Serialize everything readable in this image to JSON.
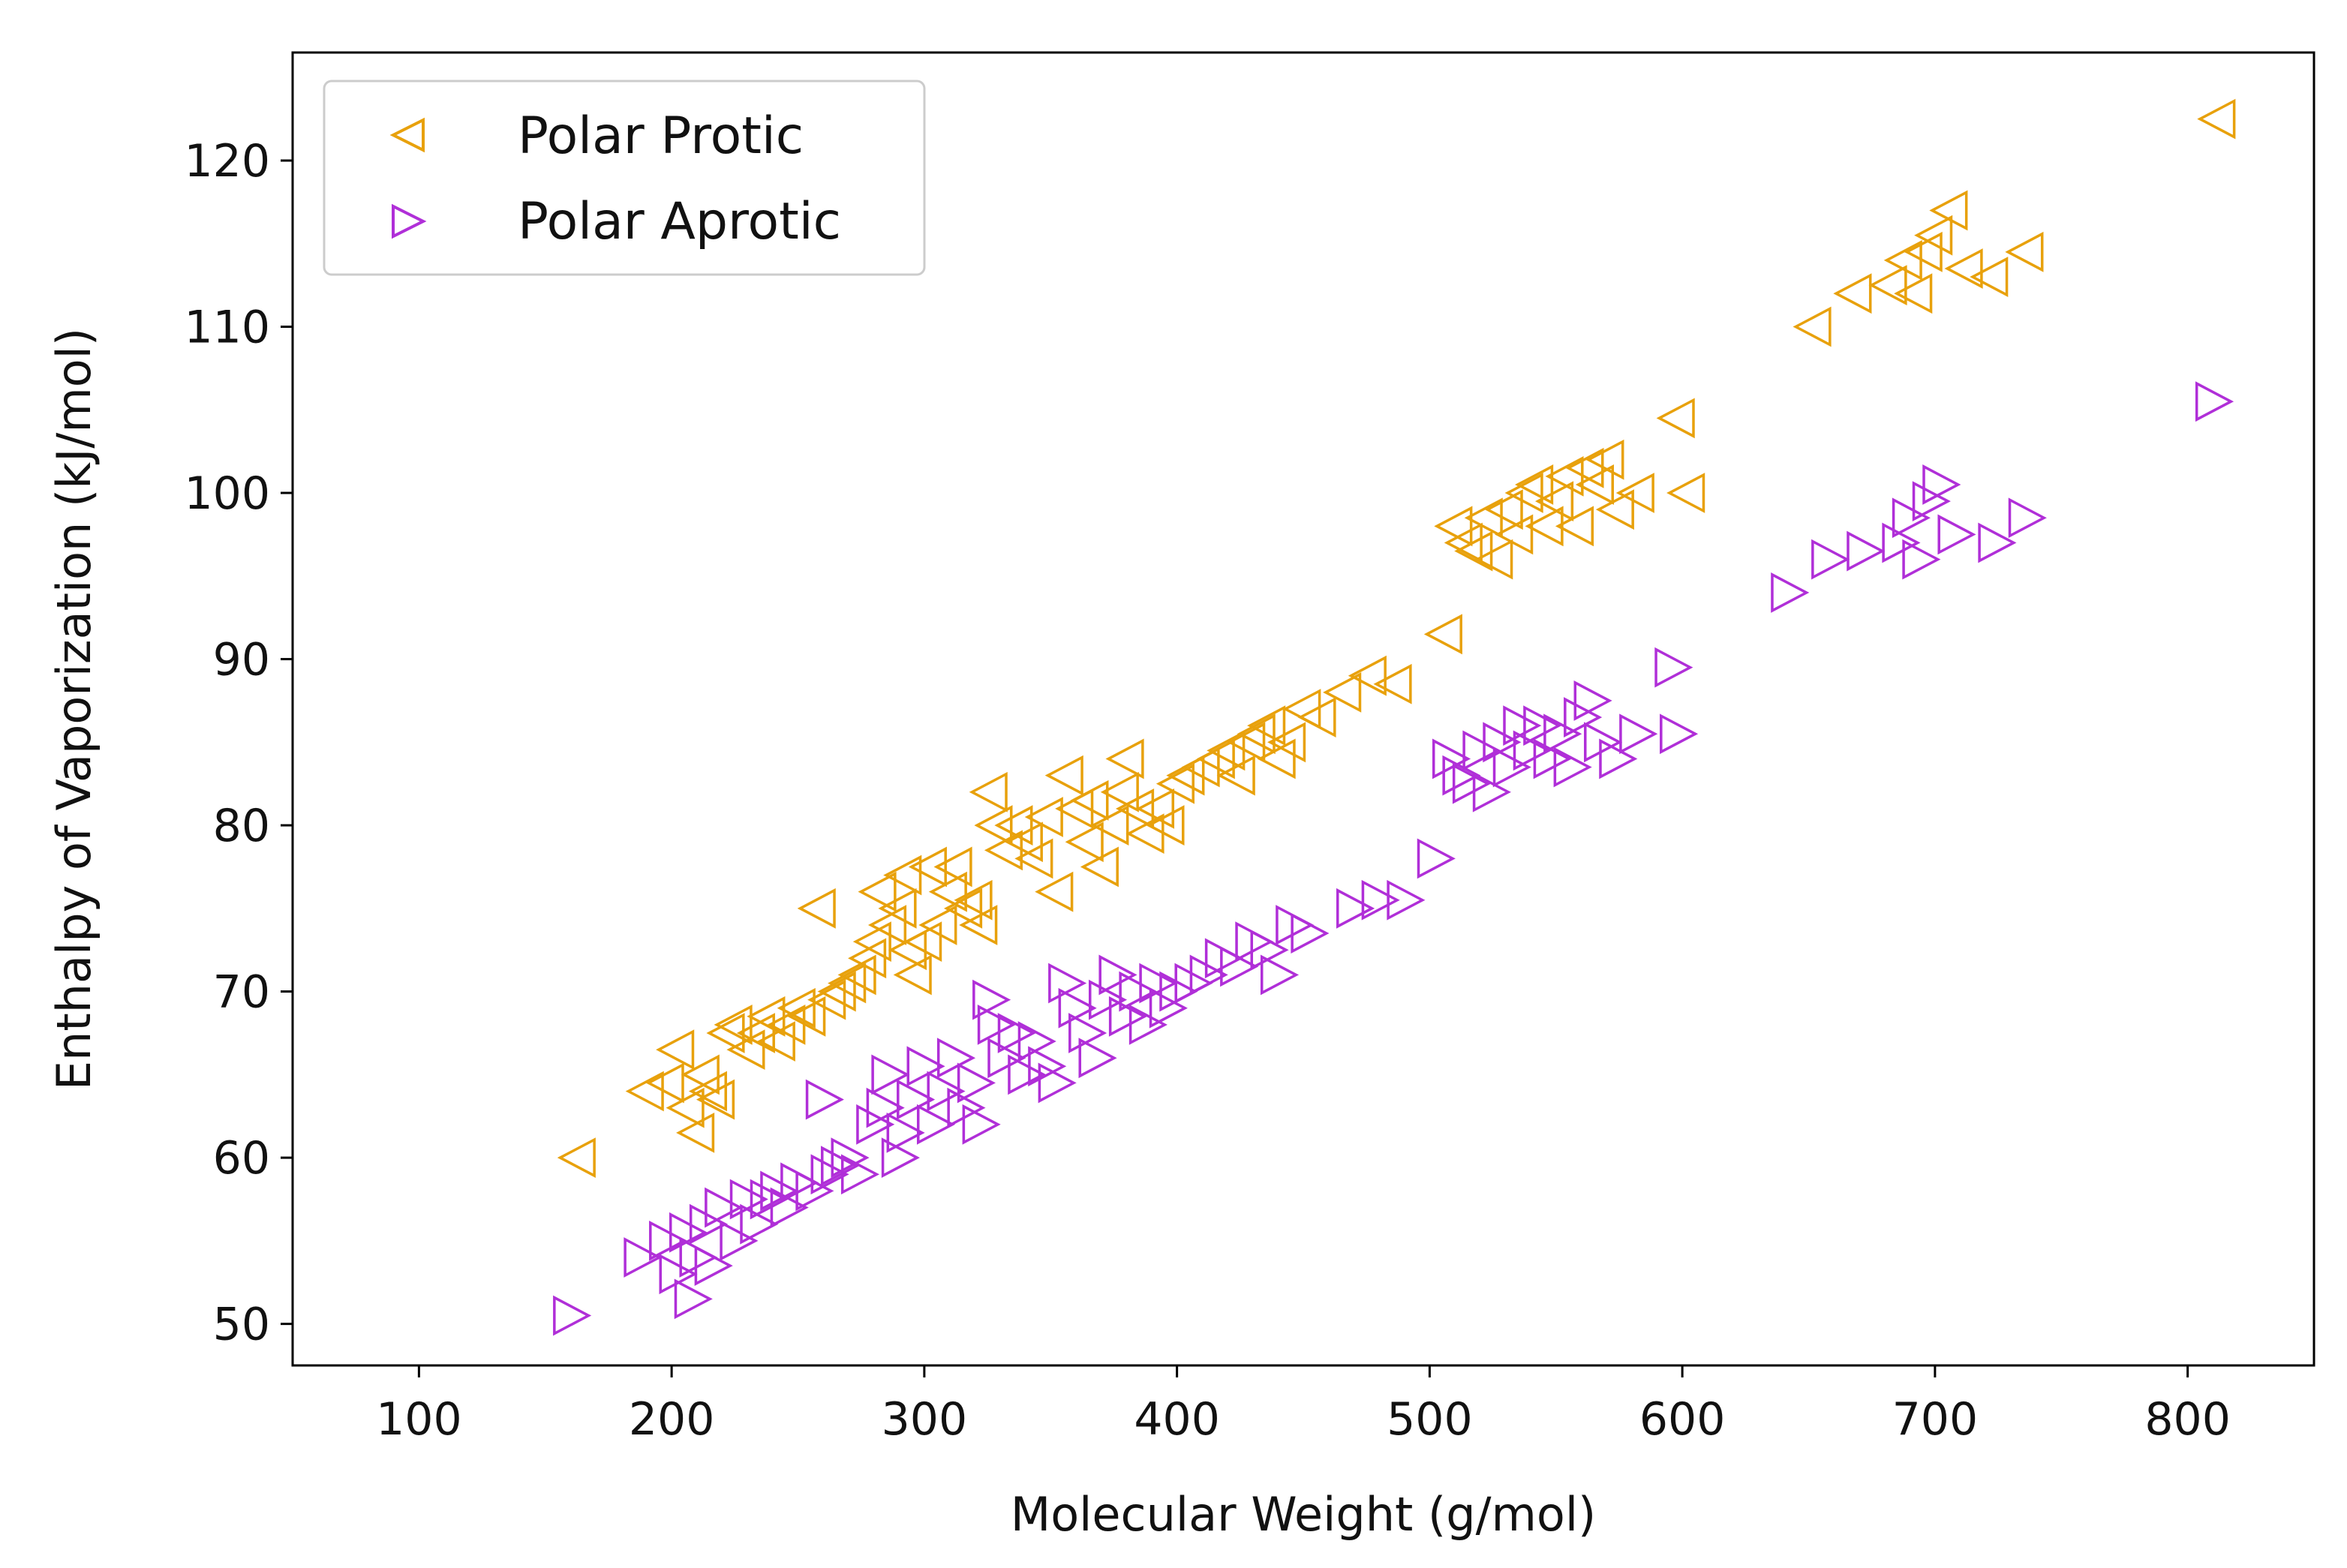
{
  "chart_data": {
    "type": "scatter",
    "xlabel": "Molecular Weight (g/mol)",
    "ylabel": "Enthalpy of Vaporization (kJ/mol)",
    "xlim": [
      50,
      850
    ],
    "ylim": [
      47.5,
      126.5
    ],
    "xticks": [
      100,
      200,
      300,
      400,
      500,
      600,
      700,
      800
    ],
    "yticks": [
      50,
      60,
      70,
      80,
      90,
      100,
      110,
      120
    ],
    "grid": false,
    "legend_position": "top-left",
    "series": [
      {
        "name": "Polar Protic",
        "marker": "triangle-left",
        "color": "#E8A10C",
        "points": [
          [
            163,
            60
          ],
          [
            190,
            64
          ],
          [
            198,
            64.5
          ],
          [
            202,
            66.5
          ],
          [
            206,
            63
          ],
          [
            210,
            61.5
          ],
          [
            212,
            65
          ],
          [
            215,
            64
          ],
          [
            218,
            63.5
          ],
          [
            222,
            67.5
          ],
          [
            225,
            68
          ],
          [
            230,
            66.5
          ],
          [
            234,
            67.5
          ],
          [
            238,
            68.5
          ],
          [
            242,
            67
          ],
          [
            246,
            68
          ],
          [
            250,
            69
          ],
          [
            254,
            68.5
          ],
          [
            258,
            75
          ],
          [
            262,
            69.5
          ],
          [
            266,
            70
          ],
          [
            270,
            70.5
          ],
          [
            274,
            71
          ],
          [
            278,
            72
          ],
          [
            280,
            73
          ],
          [
            282,
            76
          ],
          [
            286,
            74
          ],
          [
            290,
            75
          ],
          [
            292,
            77
          ],
          [
            294,
            72.5
          ],
          [
            296,
            71
          ],
          [
            300,
            73
          ],
          [
            302,
            77.5
          ],
          [
            306,
            74
          ],
          [
            310,
            76
          ],
          [
            312,
            77.5
          ],
          [
            316,
            75
          ],
          [
            320,
            75.5
          ],
          [
            322,
            74
          ],
          [
            326,
            82
          ],
          [
            328,
            80
          ],
          [
            332,
            78.5
          ],
          [
            336,
            80
          ],
          [
            340,
            79
          ],
          [
            344,
            78
          ],
          [
            348,
            80.5
          ],
          [
            352,
            76
          ],
          [
            356,
            83
          ],
          [
            360,
            81
          ],
          [
            364,
            79
          ],
          [
            366,
            81.5
          ],
          [
            370,
            77.5
          ],
          [
            374,
            80
          ],
          [
            378,
            82
          ],
          [
            380,
            84
          ],
          [
            384,
            81
          ],
          [
            388,
            79.5
          ],
          [
            392,
            81
          ],
          [
            396,
            80
          ],
          [
            400,
            82.5
          ],
          [
            404,
            83
          ],
          [
            410,
            83.5
          ],
          [
            416,
            84
          ],
          [
            420,
            84.5
          ],
          [
            424,
            83
          ],
          [
            428,
            85
          ],
          [
            432,
            85.5
          ],
          [
            436,
            86
          ],
          [
            440,
            84
          ],
          [
            444,
            85
          ],
          [
            450,
            87
          ],
          [
            456,
            86.5
          ],
          [
            466,
            88
          ],
          [
            476,
            89
          ],
          [
            486,
            88.5
          ],
          [
            506,
            91.5
          ],
          [
            510,
            98
          ],
          [
            514,
            97
          ],
          [
            518,
            96.5
          ],
          [
            522,
            98.5
          ],
          [
            526,
            96
          ],
          [
            530,
            99
          ],
          [
            534,
            97.5
          ],
          [
            538,
            100
          ],
          [
            542,
            100.5
          ],
          [
            546,
            98
          ],
          [
            550,
            99.5
          ],
          [
            554,
            101
          ],
          [
            558,
            98
          ],
          [
            562,
            101.5
          ],
          [
            566,
            100.5
          ],
          [
            570,
            102
          ],
          [
            574,
            99
          ],
          [
            582,
            100
          ],
          [
            598,
            104.5
          ],
          [
            602,
            100
          ],
          [
            652,
            110
          ],
          [
            668,
            112
          ],
          [
            682,
            112.5
          ],
          [
            688,
            114
          ],
          [
            692,
            112
          ],
          [
            696,
            114.5
          ],
          [
            700,
            115.5
          ],
          [
            706,
            117
          ],
          [
            712,
            113.5
          ],
          [
            722,
            113
          ],
          [
            736,
            114.5
          ],
          [
            812,
            122.5
          ]
        ]
      },
      {
        "name": "Polar Aprotic",
        "marker": "triangle-right",
        "color": "#B02FD8",
        "points": [
          [
            160,
            50.5
          ],
          [
            188,
            54
          ],
          [
            198,
            55
          ],
          [
            202,
            53
          ],
          [
            206,
            55.5
          ],
          [
            208,
            51.5
          ],
          [
            210,
            54
          ],
          [
            214,
            56
          ],
          [
            216,
            53.5
          ],
          [
            220,
            57
          ],
          [
            226,
            55
          ],
          [
            230,
            57.5
          ],
          [
            234,
            56
          ],
          [
            238,
            57.5
          ],
          [
            242,
            58
          ],
          [
            246,
            57
          ],
          [
            250,
            58.5
          ],
          [
            256,
            58
          ],
          [
            260,
            63.5
          ],
          [
            262,
            59
          ],
          [
            266,
            59.5
          ],
          [
            270,
            60
          ],
          [
            274,
            59
          ],
          [
            280,
            62
          ],
          [
            284,
            63
          ],
          [
            286,
            65
          ],
          [
            290,
            60
          ],
          [
            292,
            61.5
          ],
          [
            296,
            63.5
          ],
          [
            300,
            65.5
          ],
          [
            304,
            62
          ],
          [
            308,
            64
          ],
          [
            312,
            66
          ],
          [
            316,
            63
          ],
          [
            320,
            64.5
          ],
          [
            322,
            62
          ],
          [
            326,
            69.5
          ],
          [
            328,
            68
          ],
          [
            332,
            66
          ],
          [
            336,
            67.5
          ],
          [
            340,
            65
          ],
          [
            344,
            67
          ],
          [
            348,
            65.5
          ],
          [
            352,
            64.5
          ],
          [
            356,
            70.5
          ],
          [
            360,
            69
          ],
          [
            364,
            67.5
          ],
          [
            368,
            66
          ],
          [
            372,
            69.5
          ],
          [
            376,
            71
          ],
          [
            380,
            68.5
          ],
          [
            384,
            70
          ],
          [
            388,
            68
          ],
          [
            392,
            70.5
          ],
          [
            396,
            69
          ],
          [
            400,
            70
          ],
          [
            406,
            70.5
          ],
          [
            412,
            71
          ],
          [
            418,
            72
          ],
          [
            424,
            71.5
          ],
          [
            430,
            73
          ],
          [
            436,
            72.5
          ],
          [
            440,
            71
          ],
          [
            446,
            74
          ],
          [
            452,
            73.5
          ],
          [
            470,
            75
          ],
          [
            480,
            75.5
          ],
          [
            490,
            75.5
          ],
          [
            502,
            78
          ],
          [
            508,
            84
          ],
          [
            512,
            83
          ],
          [
            516,
            82.5
          ],
          [
            520,
            84.5
          ],
          [
            524,
            82
          ],
          [
            528,
            85
          ],
          [
            532,
            83.5
          ],
          [
            536,
            86
          ],
          [
            540,
            84.5
          ],
          [
            544,
            86
          ],
          [
            548,
            84
          ],
          [
            552,
            85.5
          ],
          [
            556,
            83.5
          ],
          [
            560,
            86.5
          ],
          [
            564,
            87.5
          ],
          [
            568,
            85
          ],
          [
            574,
            84
          ],
          [
            582,
            85.5
          ],
          [
            596,
            89.5
          ],
          [
            598,
            85.5
          ],
          [
            642,
            94
          ],
          [
            658,
            96
          ],
          [
            672,
            96.5
          ],
          [
            686,
            97
          ],
          [
            690,
            98.5
          ],
          [
            694,
            96
          ],
          [
            698,
            99.5
          ],
          [
            702,
            100.5
          ],
          [
            708,
            97.5
          ],
          [
            724,
            97
          ],
          [
            736,
            98.5
          ],
          [
            810,
            105.5
          ]
        ]
      }
    ]
  }
}
